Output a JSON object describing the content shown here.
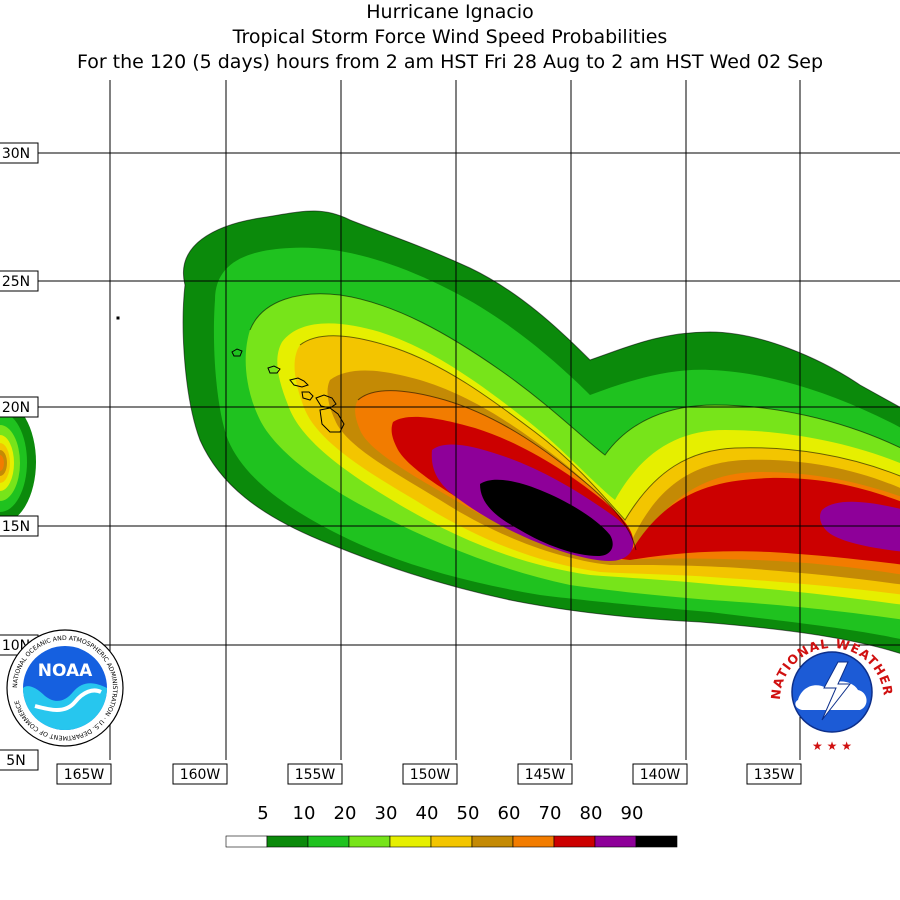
{
  "title": {
    "line1": "Hurricane Ignacio",
    "line2": "Tropical Storm Force Wind Speed Probabilities",
    "line3": "For the 120 (5 days) hours from 2 am HST Fri 28 Aug to 2 am HST Wed 02 Sep"
  },
  "map": {
    "lat_labels": [
      "30N",
      "25N",
      "20N",
      "15N",
      "10N",
      "5N"
    ],
    "lon_labels": [
      "165W",
      "160W",
      "155W",
      "150W",
      "145W",
      "140W",
      "135W"
    ]
  },
  "legend": {
    "values": [
      "5",
      "10",
      "20",
      "30",
      "40",
      "50",
      "60",
      "70",
      "80",
      "90"
    ],
    "colors": [
      "#ffffff",
      "#0b8a0b",
      "#1fc21f",
      "#77e41a",
      "#e6ef00",
      "#f3c500",
      "#c48a05",
      "#f27c00",
      "#cc0000",
      "#8e0099",
      "#000000"
    ]
  },
  "logos": {
    "noaa": {
      "text": "NOAA",
      "ring_text": "NATIONAL OCEANIC AND ATMOSPHERIC ADMINISTRATION · U.S. DEPARTMENT OF COMMERCE"
    },
    "nws": {
      "ring_text": "NATIONAL WEATHER SERVICE"
    }
  }
}
